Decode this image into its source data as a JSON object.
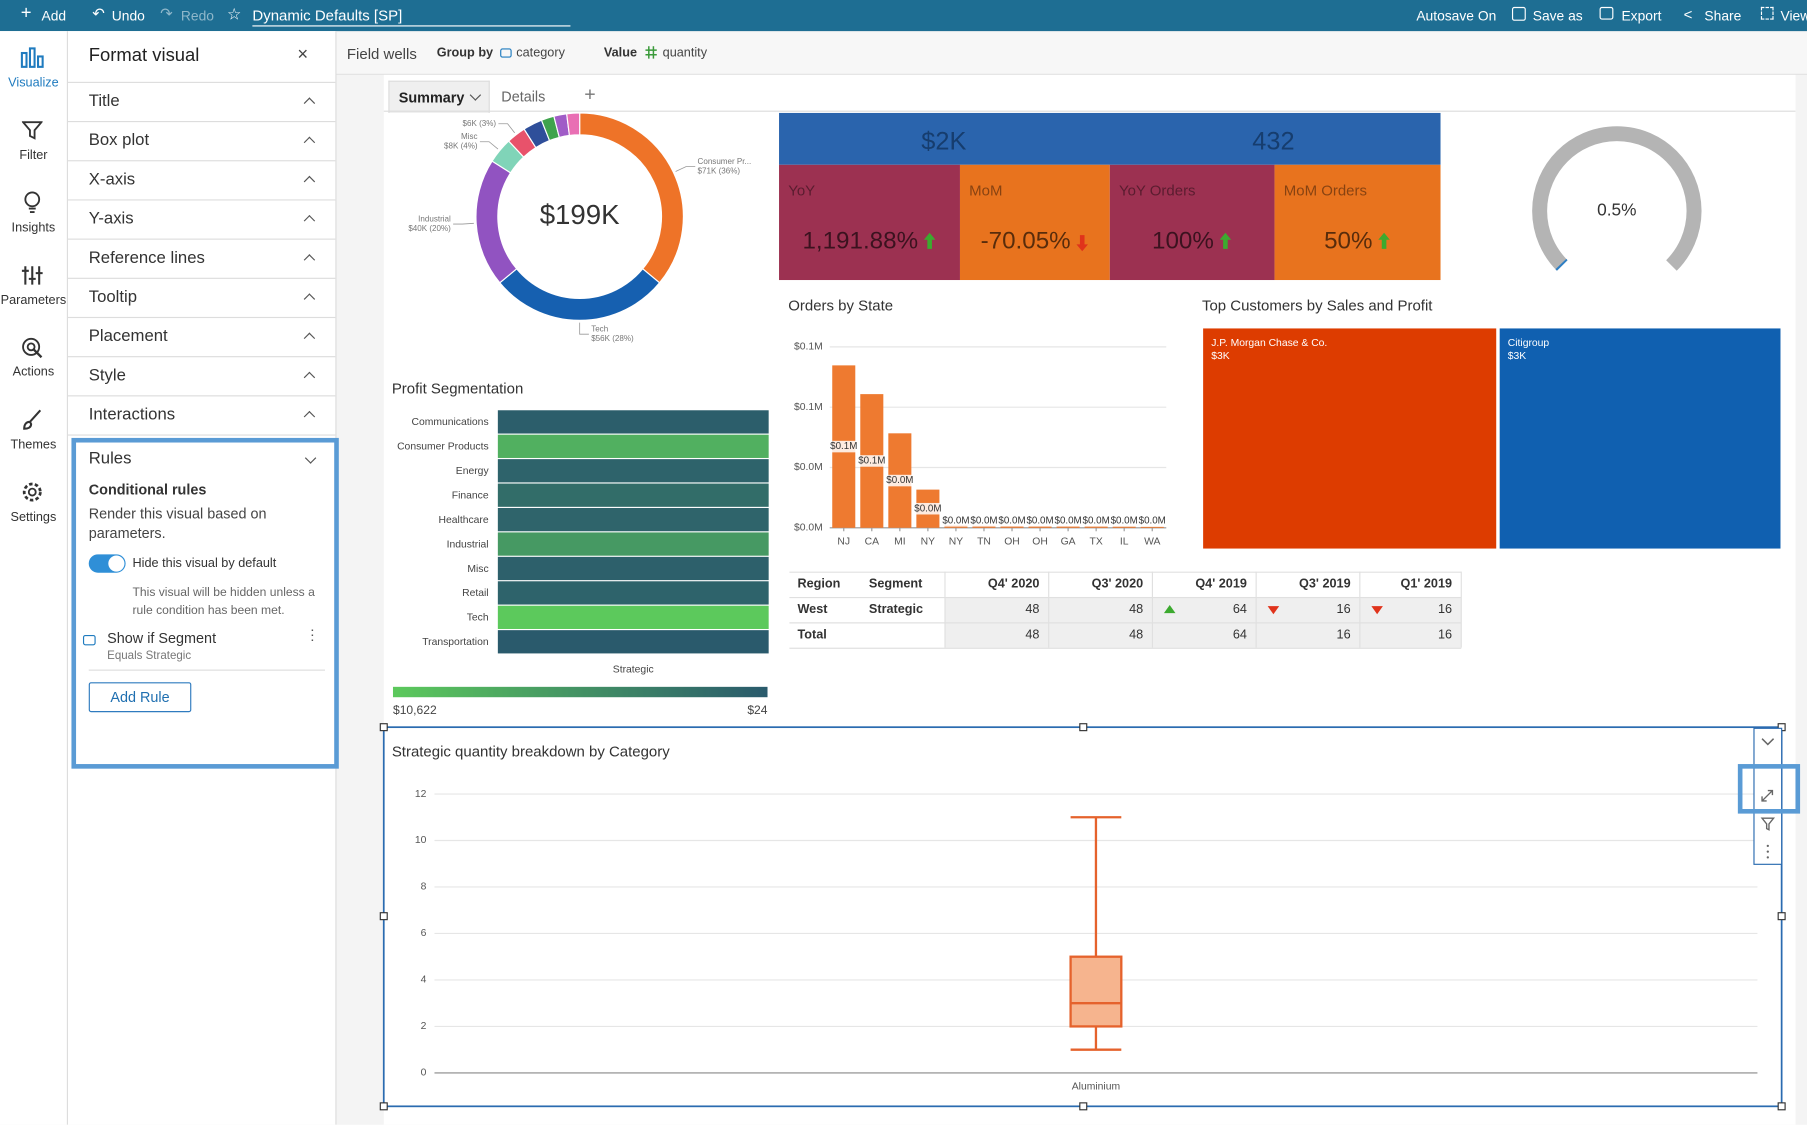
{
  "toolbar": {
    "add": "Add",
    "undo": "Undo",
    "redo": "Redo",
    "document_title": "Dynamic Defaults [SP]",
    "autosave": "Autosave On",
    "save_as": "Save as",
    "export": "Export",
    "share": "Share",
    "view": "View"
  },
  "nav": [
    "Visualize",
    "Filter",
    "Insights",
    "Parameters",
    "Actions",
    "Themes",
    "Settings"
  ],
  "format_panel": {
    "title": "Format visual",
    "sections": [
      "Title",
      "Box plot",
      "X-axis",
      "Y-axis",
      "Reference lines",
      "Tooltip",
      "Placement",
      "Style",
      "Interactions"
    ],
    "rules": {
      "title": "Rules",
      "heading": "Conditional rules",
      "description": "Render this visual based on parameters.",
      "toggle": "Hide this visual by default",
      "toggle_on": true,
      "toggle_note": "This visual will be hidden unless a rule condition has been met.",
      "rule_name": "Show if Segment",
      "rule_condition": "Equals Strategic",
      "button": "Add Rule"
    }
  },
  "field_wells": {
    "label": "Field wells",
    "group_by": "Group by",
    "group_field": "category",
    "value": "Value",
    "value_field": "quantity"
  },
  "tabs": [
    "Summary",
    "Details"
  ],
  "donut": {
    "type": "pie",
    "center_label": "$199K",
    "categories": [
      "Consumer Pr...",
      "Tech",
      "Industrial",
      "Misc",
      null,
      null,
      null,
      null,
      null
    ],
    "values": [
      36,
      28,
      20,
      4,
      3,
      3,
      2,
      2,
      2
    ],
    "value_labels": [
      "$71K (36%)",
      "$56K (28%)",
      "$40K (20%)",
      "$8K (4%)",
      "$6K (3%)",
      null,
      null,
      null,
      null
    ],
    "colors": [
      "#ee7328",
      "#1660b0",
      "#9153c1",
      "#80d4b8",
      "#e8526b",
      "#2f4f9a",
      "#3fa34d",
      "#a05cc7",
      "#e96fb4"
    ]
  },
  "kpi": {
    "top": [
      "$2K",
      432
    ],
    "top_color": "#2a64ad",
    "tiles": [
      {
        "label": "YoY",
        "value": "1,191.88%",
        "trend": "up",
        "color": "#9c3151"
      },
      {
        "label": "MoM",
        "value": "-70.05%",
        "trend": "down",
        "color": "#e8731e"
      },
      {
        "label": "YoY Orders",
        "value": "100%",
        "trend": "up",
        "color": "#9c3151"
      },
      {
        "label": "MoM Orders",
        "value": "50%",
        "trend": "up",
        "color": "#e8731e"
      }
    ]
  },
  "gauge": {
    "type": "gauge",
    "value": 0.5,
    "value_label": "0.5%",
    "color": "#b4b4b4",
    "fill_color": "#2e7fc4"
  },
  "orders_by_state": {
    "type": "bar",
    "title": "Orders by State",
    "categories": [
      "NJ",
      "CA",
      "MI",
      "NY",
      "NY",
      "TN",
      "OH",
      "OH",
      "GA",
      "TX",
      "IL",
      "WA"
    ],
    "values": [
      80800,
      66500,
      47000,
      19000,
      1200,
      1000,
      900,
      800,
      800,
      700,
      600,
      500
    ],
    "value_labels": [
      "$0.1M",
      "$0.1M",
      "$0.0M",
      "$0.0M",
      "$0.0M",
      "$0.0M",
      "$0.0M",
      "$0.0M",
      "$0.0M",
      "$0.0M",
      "$0.0M",
      "$0.0M"
    ],
    "ylim": [
      0,
      90000
    ],
    "yticks": [
      {
        "value": 0,
        "label": "$0.0M"
      },
      {
        "value": 30000,
        "label": "$0.0M"
      },
      {
        "value": 60000,
        "label": "$0.1M"
      },
      {
        "value": 90000,
        "label": "$0.1M"
      }
    ],
    "color": "#ee7a30",
    "grid": true
  },
  "top_customers": {
    "type": "treemap",
    "title": "Top Customers by Sales and Profit",
    "categories": [
      "J.P. Morgan Chase & Co.",
      "Citigroup"
    ],
    "values": [
      3100,
      2970
    ],
    "value_labels": [
      "$3K",
      "$3K"
    ],
    "colors": [
      "#dd3c00",
      "#1060b0"
    ]
  },
  "table": {
    "columns": [
      "Region",
      "Segment",
      "Q4' 2020",
      "Q3' 2020",
      "Q4' 2019",
      "Q3' 2019",
      "Q1' 2019"
    ],
    "rows": [
      [
        "West",
        "Strategic",
        48,
        48,
        64,
        16,
        16
      ],
      [
        "Total",
        null,
        48,
        48,
        64,
        16,
        16
      ]
    ],
    "indicators": [
      {
        "row": 0,
        "column": 4,
        "direction": "up"
      },
      {
        "row": 0,
        "column": 5,
        "direction": "down"
      },
      {
        "row": 0,
        "column": 6,
        "direction": "down"
      }
    ]
  },
  "profit_segmentation": {
    "type": "heatmap",
    "title": "Profit Segmentation",
    "rows": [
      "Communications",
      "Consumer Products",
      "Energy",
      "Finance",
      "Healthcare",
      "Industrial",
      "Misc",
      "Retail",
      "Tech",
      "Transportation"
    ],
    "columns": [
      "Strategic"
    ],
    "values": [
      [
        400
      ],
      [
        8200
      ],
      [
        900
      ],
      [
        1800
      ],
      [
        1000
      ],
      [
        6000
      ],
      [
        600
      ],
      [
        900
      ],
      [
        10622
      ],
      [
        24
      ]
    ],
    "color_scale": [
      {
        "value": 10622,
        "label": "$10,622",
        "color": "#5cc95c"
      },
      {
        "value": 24,
        "label": "$24",
        "color": "#2a5a6c"
      }
    ]
  },
  "box_plot": {
    "type": "box",
    "title": "Strategic quantity breakdown by Category",
    "categories": [
      "Aluminium"
    ],
    "min": [
      1
    ],
    "q1": [
      2
    ],
    "median": [
      3
    ],
    "q3": [
      5
    ],
    "max": [
      11
    ],
    "ylim": [
      0,
      12
    ],
    "yticks": [
      0,
      2,
      4,
      6,
      8,
      10,
      12
    ],
    "color": "#e5622c",
    "fill": "#f6b48e",
    "grid": true
  }
}
